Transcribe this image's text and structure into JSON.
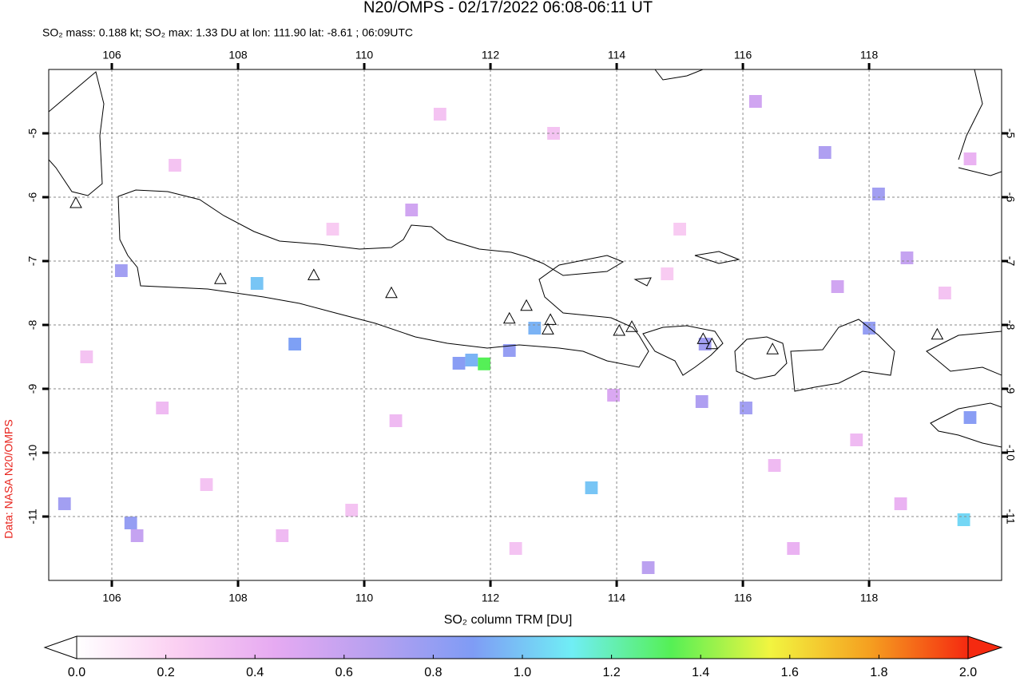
{
  "chart_data": {
    "type": "map",
    "title": "N20/OMPS - 02/17/2022 06:08-06:11 UT",
    "subtitle": "SO₂ mass: 0.188 kt; SO₂ max: 1.33 DU at lon: 111.90 lat: -8.61 ; 06:09UTC",
    "side_note": "Data: NASA N20/OMPS",
    "xlim": [
      105,
      120.1
    ],
    "ylim": [
      -12,
      -4
    ],
    "xticks": [
      106,
      108,
      110,
      112,
      114,
      116,
      118
    ],
    "yticks": [
      -5,
      -6,
      -7,
      -8,
      -9,
      -10,
      -11
    ],
    "grid": true,
    "volcanoes": {
      "x": [
        107.72,
        109.2,
        110.43,
        112.3,
        112.57,
        112.95,
        112.91,
        114.04,
        114.24,
        115.37,
        115.51,
        116.47,
        119.08,
        105.43
      ],
      "y": [
        -7.29,
        -7.23,
        -7.51,
        -7.91,
        -7.71,
        -7.93,
        -8.08,
        -8.1,
        -8.04,
        -8.23,
        -8.31,
        -8.39,
        -8.16,
        -6.1
      ]
    },
    "pixels": {
      "x": [
        111.9,
        111.7,
        111.5,
        112.3,
        112.7,
        108.3,
        108.9,
        113.6,
        119.5,
        119.6,
        118.15,
        117.3,
        118.0,
        116.05,
        115.35,
        106.15,
        105.25,
        106.3,
        115.4,
        118.6,
        106.4,
        114.5,
        117.5,
        110.75,
        116.2,
        113.95,
        107,
        109.5,
        110.5,
        107.5,
        113,
        116.5,
        118.5,
        115,
        119.2,
        105.6,
        108.7,
        112.4,
        117.8,
        114.8,
        111.2,
        106.8,
        109.8,
        119.6,
        116.8
      ],
      "y": [
        -8.61,
        -8.55,
        -8.6,
        -8.4,
        -8.05,
        -7.35,
        -8.3,
        -10.55,
        -11.05,
        -9.45,
        -5.95,
        -5.3,
        -8.05,
        -9.3,
        -9.2,
        -7.15,
        -10.8,
        -11.1,
        -8.3,
        -6.95,
        -11.3,
        -11.8,
        -7.4,
        -6.2,
        -4.5,
        -9.1,
        -5.5,
        -6.5,
        -9.5,
        -10.5,
        -5,
        -10.2,
        -10.8,
        -6.5,
        -7.5,
        -8.5,
        -11.3,
        -11.5,
        -9.8,
        -7.2,
        -4.7,
        -9.3,
        -10.9,
        -5.4,
        -11.5
      ],
      "values": [
        1.33,
        0.95,
        0.85,
        0.8,
        0.95,
        1.0,
        0.9,
        1.0,
        1.05,
        0.85,
        0.75,
        0.7,
        0.8,
        0.75,
        0.7,
        0.75,
        0.75,
        0.8,
        0.75,
        0.6,
        0.6,
        0.65,
        0.55,
        0.55,
        0.55,
        0.5,
        0.3,
        0.25,
        0.35,
        0.3,
        0.3,
        0.35,
        0.4,
        0.25,
        0.3,
        0.3,
        0.35,
        0.3,
        0.35,
        0.25,
        0.3,
        0.35,
        0.3,
        0.4,
        0.4
      ]
    },
    "colorbar": {
      "label": "SO₂ column TRM [DU]",
      "lim": [
        0,
        2
      ],
      "ticks": [
        {
          "value": 0,
          "label": "0.0"
        },
        0.2,
        0.4,
        0.6,
        0.8,
        {
          "value": 1,
          "label": "1.0"
        },
        1.2,
        1.4,
        1.6,
        1.8,
        {
          "value": 2,
          "label": "2.0"
        }
      ],
      "colormap": [
        "#ffffff",
        "#fbd0f2",
        "#e6aaf2",
        "#b7a0f0",
        "#7f9cf5",
        "#70eef5",
        "#55f055",
        "#f2f540",
        "#f5a020",
        "#f52a10"
      ]
    }
  }
}
